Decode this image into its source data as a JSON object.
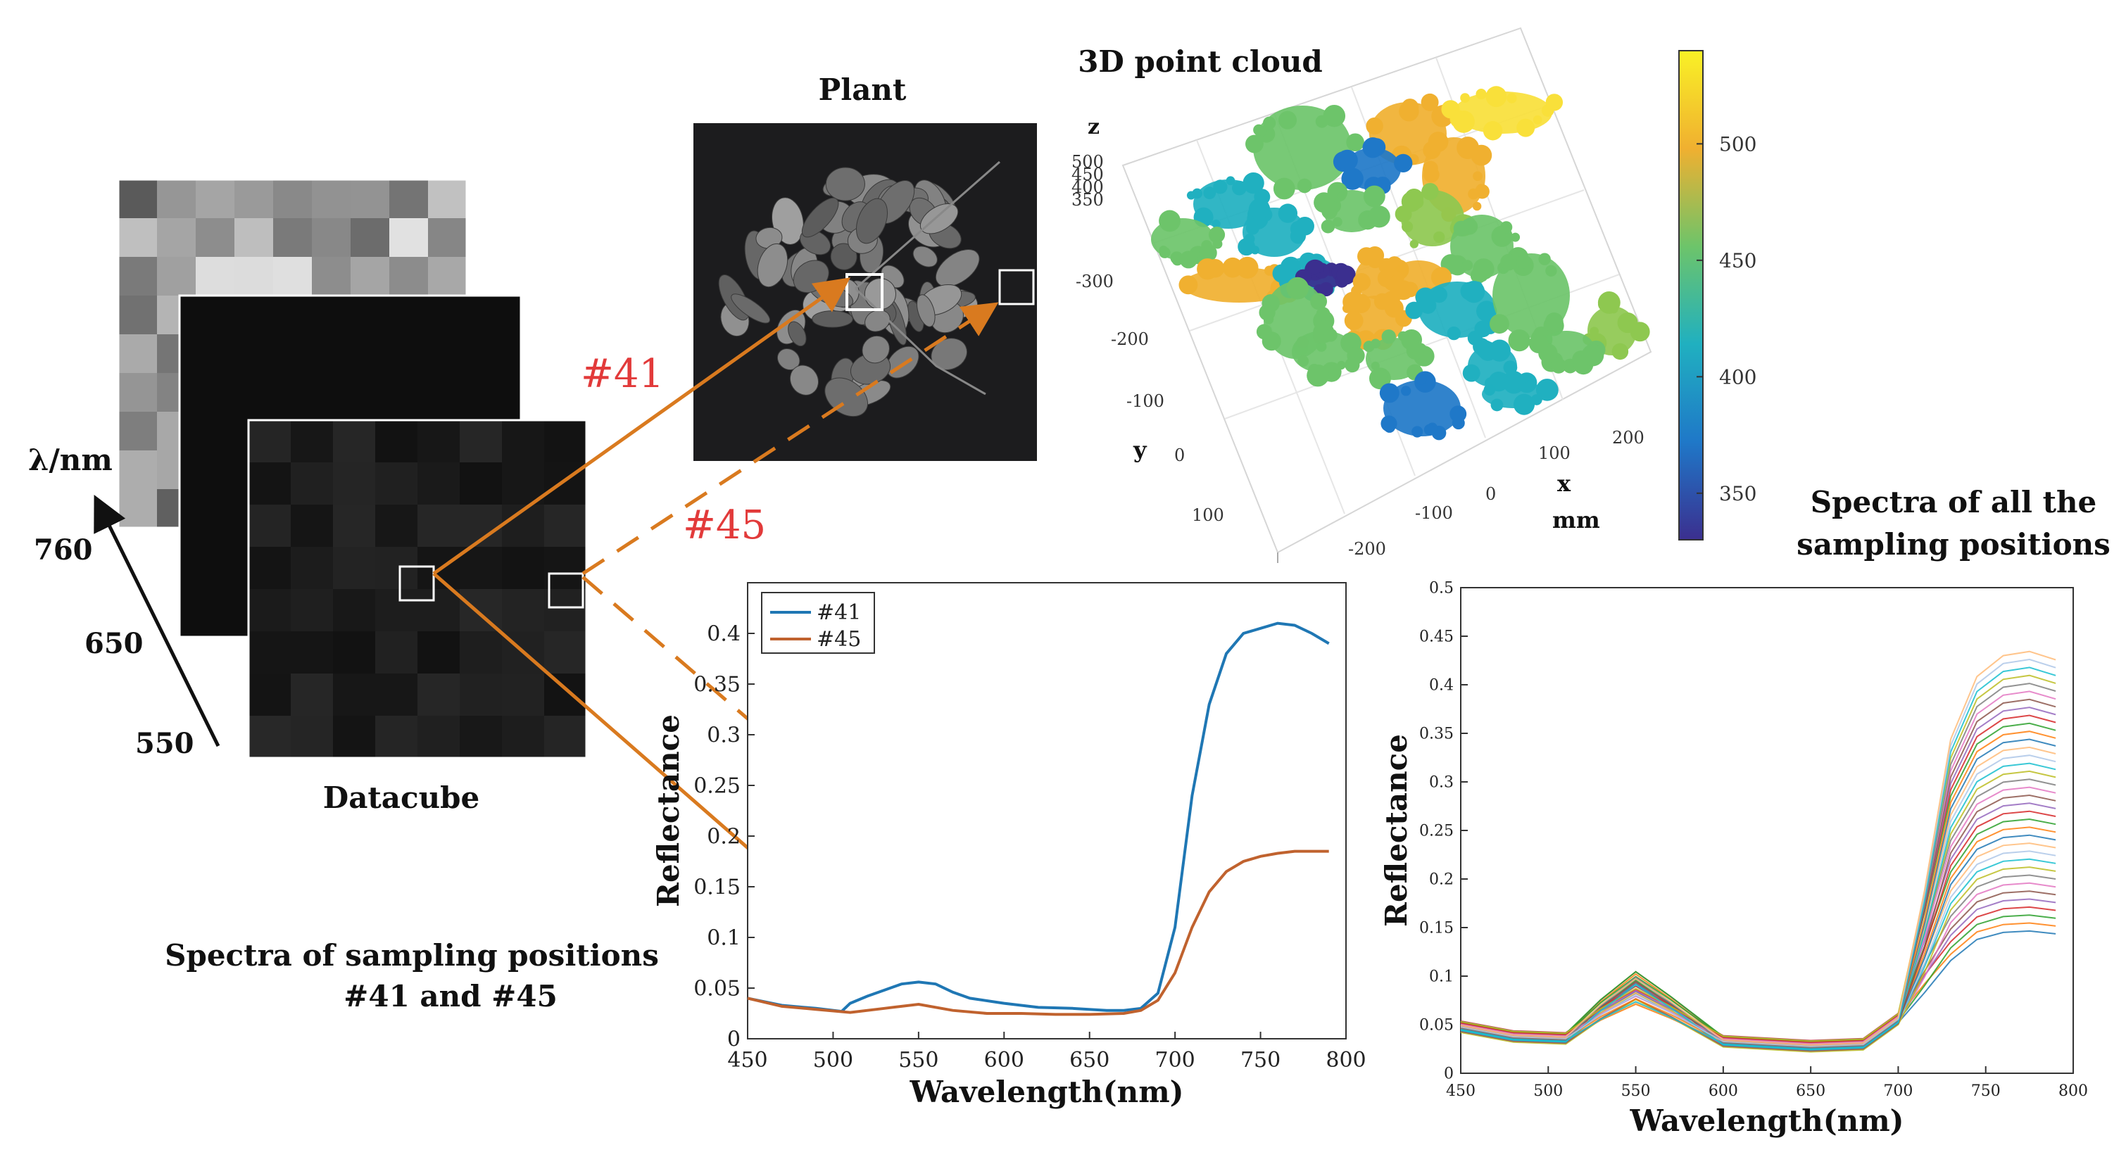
{
  "titles": {
    "plant": "Plant",
    "point_cloud": "3D point cloud",
    "datacube": "Datacube",
    "spectra_pair_line1": "Spectra of sampling positions",
    "spectra_pair_line2": "#41 and #45",
    "spectra_all_line1": "Spectra of all the",
    "spectra_all_line2": "sampling positions"
  },
  "datacube": {
    "axis_label": "λ/nm",
    "wavelength_labels": [
      "760",
      "650",
      "550"
    ]
  },
  "markers": {
    "sample_41": "#41",
    "sample_45": "#45"
  },
  "point_cloud": {
    "axis_labels": {
      "z": "z",
      "y": "y",
      "x": "x",
      "unit": "mm"
    },
    "z_ticks": [
      "500",
      "450",
      "400",
      "350"
    ],
    "y_ticks": [
      "-300",
      "-200",
      "-100",
      "0",
      "100"
    ],
    "x_ticks": [
      "200",
      "100",
      "0",
      "-100",
      "-200"
    ]
  },
  "colorbar": {
    "ticks": [
      "500",
      "450",
      "400",
      "350"
    ],
    "range": [
      330,
      540
    ],
    "colors": [
      "#3b2f8f",
      "#1f78c8",
      "#20b0c0",
      "#6dc46a",
      "#f0b030",
      "#f9f126"
    ]
  },
  "chart_data": [
    {
      "type": "line",
      "xlabel": "Wavelength(nm)",
      "ylabel": "Reflectance",
      "xlim": [
        450,
        800
      ],
      "ylim": [
        0,
        0.45
      ],
      "x_ticks": [
        "450",
        "500",
        "550",
        "600",
        "650",
        "700",
        "750",
        "800"
      ],
      "y_ticks": [
        "0",
        "0.05",
        "0.1",
        "0.15",
        "0.2",
        "0.25",
        "0.3",
        "0.35",
        "0.4"
      ],
      "legend_position": "top-left",
      "series": [
        {
          "name": "#41",
          "color": "#1f77b4",
          "x": [
            450,
            470,
            490,
            505,
            510,
            520,
            530,
            540,
            550,
            560,
            570,
            580,
            600,
            620,
            640,
            660,
            670,
            680,
            690,
            700,
            710,
            720,
            730,
            740,
            750,
            760,
            770,
            780,
            790
          ],
          "y": [
            0.04,
            0.033,
            0.03,
            0.027,
            0.035,
            0.042,
            0.048,
            0.054,
            0.056,
            0.054,
            0.046,
            0.04,
            0.035,
            0.031,
            0.03,
            0.028,
            0.028,
            0.03,
            0.045,
            0.11,
            0.24,
            0.33,
            0.38,
            0.4,
            0.405,
            0.41,
            0.408,
            0.4,
            0.39
          ]
        },
        {
          "name": "#45",
          "color": "#c0622e",
          "x": [
            450,
            470,
            490,
            510,
            530,
            550,
            570,
            590,
            610,
            630,
            650,
            670,
            680,
            690,
            700,
            710,
            720,
            730,
            740,
            750,
            760,
            770,
            780,
            790
          ],
          "y": [
            0.04,
            0.032,
            0.029,
            0.026,
            0.03,
            0.034,
            0.028,
            0.025,
            0.025,
            0.024,
            0.024,
            0.025,
            0.028,
            0.038,
            0.065,
            0.11,
            0.145,
            0.165,
            0.175,
            0.18,
            0.183,
            0.185,
            0.185,
            0.185
          ]
        }
      ]
    },
    {
      "type": "line",
      "xlabel": "Wavelength(nm)",
      "ylabel": "Reflectance",
      "xlim": [
        450,
        800
      ],
      "ylim": [
        0,
        0.5
      ],
      "x_ticks": [
        "450",
        "500",
        "550",
        "600",
        "650",
        "700",
        "750",
        "800"
      ],
      "y_ticks": [
        "0",
        "0.05",
        "0.1",
        "0.15",
        "0.2",
        "0.25",
        "0.3",
        "0.35",
        "0.4",
        "0.45",
        "0.5"
      ],
      "note": "many overlapping spectra; envelope from ~0.15 to ~0.43 at 790 nm",
      "x": [
        450,
        480,
        510,
        530,
        550,
        570,
        600,
        650,
        680,
        700,
        715,
        730,
        745,
        760,
        775,
        790
      ],
      "series_count": 36,
      "nir_plateau_min": 0.145,
      "nir_plateau_max": 0.43
    }
  ]
}
